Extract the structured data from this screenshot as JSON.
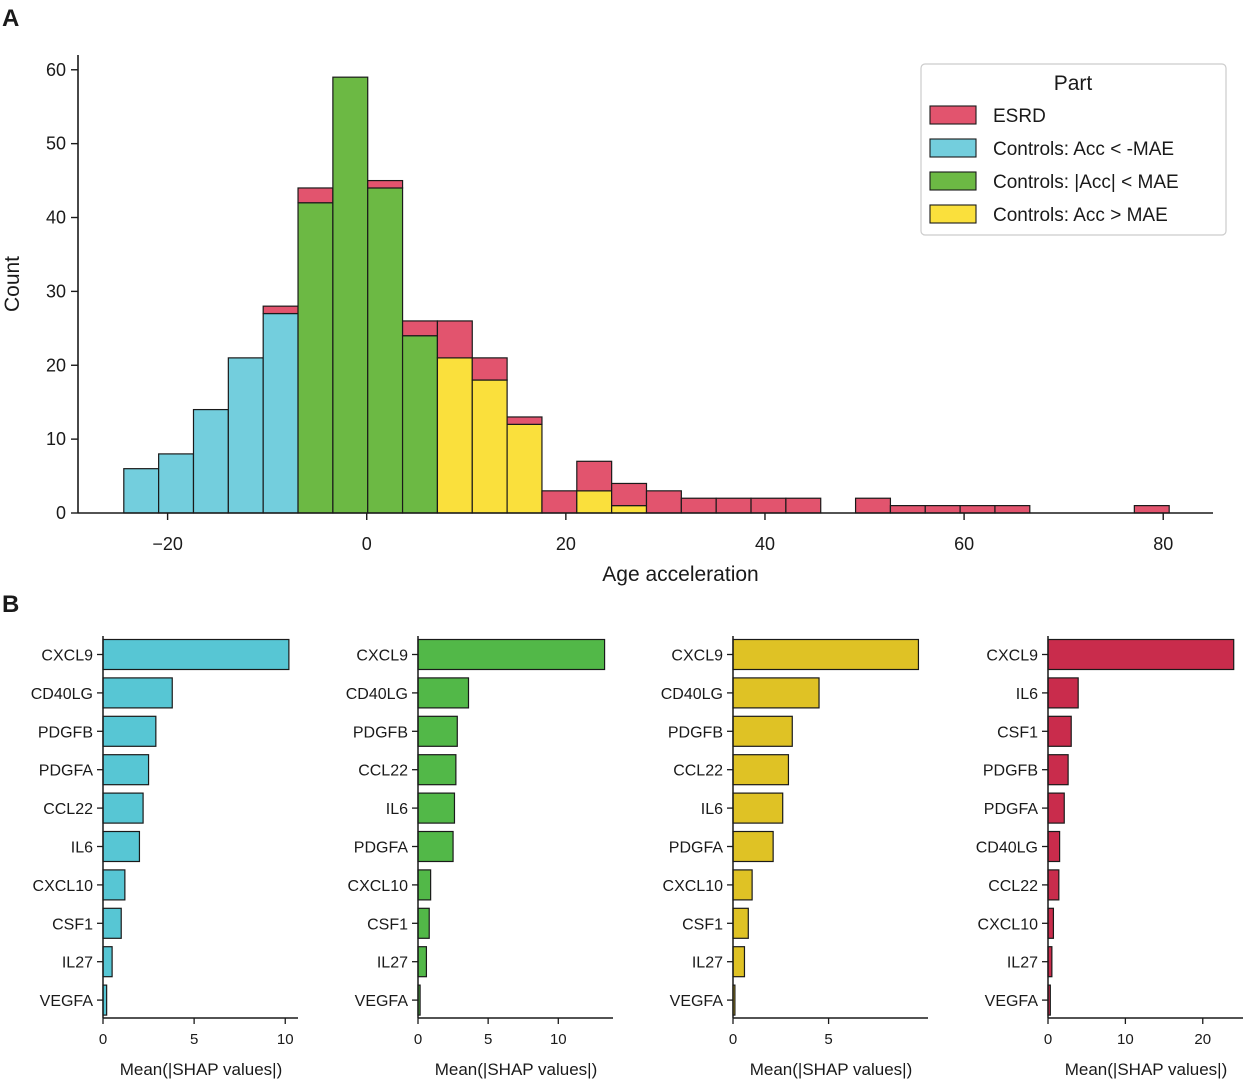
{
  "panel_labels": {
    "a": "A",
    "b": "B"
  },
  "chart_data": [
    {
      "type": "bar",
      "subtype": "stacked-histogram",
      "xlabel": "Age acceleration",
      "ylabel": "Count",
      "xlim": [
        -29,
        85
      ],
      "ylim": [
        0,
        62
      ],
      "xticks": [
        -20,
        0,
        20,
        40,
        60,
        80
      ],
      "xtick_labels": [
        "−20",
        "0",
        "20",
        "40",
        "60",
        "80"
      ],
      "yticks": [
        0,
        10,
        20,
        30,
        40,
        50,
        60
      ],
      "bins": [
        [
          -24.4,
          -20.9
        ],
        [
          -20.9,
          -17.4
        ],
        [
          -17.4,
          -13.9
        ],
        [
          -13.9,
          -10.4
        ],
        [
          -10.4,
          -6.9
        ],
        [
          -6.9,
          -3.4
        ],
        [
          -3.4,
          0.1
        ],
        [
          0.1,
          3.6
        ],
        [
          3.6,
          7.1
        ],
        [
          7.1,
          10.6
        ],
        [
          10.6,
          14.1
        ],
        [
          14.1,
          17.6
        ],
        [
          17.6,
          21.1
        ],
        [
          21.1,
          24.6
        ],
        [
          24.6,
          28.1
        ],
        [
          28.1,
          31.6
        ],
        [
          31.6,
          35.1
        ],
        [
          35.1,
          38.6
        ],
        [
          38.6,
          42.1
        ],
        [
          42.1,
          45.6
        ],
        [
          45.6,
          49.1
        ],
        [
          49.1,
          52.6
        ],
        [
          52.6,
          56.1
        ],
        [
          56.1,
          59.6
        ],
        [
          59.6,
          63.1
        ],
        [
          63.1,
          66.6
        ],
        [
          66.6,
          70.1
        ],
        [
          70.1,
          73.6
        ],
        [
          73.6,
          77.1
        ],
        [
          77.1,
          80.6
        ]
      ],
      "legend": {
        "title": "Part",
        "position": "top-right",
        "entries": [
          {
            "label": "ESRD",
            "series": 3
          },
          {
            "label": "Controls:  Acc < -MAE",
            "series": 0
          },
          {
            "label": "Controls: |Acc| < MAE",
            "series": 1
          },
          {
            "label": "Controls:  Acc > MAE",
            "series": 2
          }
        ]
      },
      "series": [
        {
          "name": "Controls:  Acc < -MAE",
          "color": "#73CEDD",
          "values": [
            6,
            8,
            14,
            21,
            27,
            0,
            0,
            0,
            0,
            0,
            0,
            0,
            0,
            0,
            0,
            0,
            0,
            0,
            0,
            0,
            0,
            0,
            0,
            0,
            0,
            0,
            0,
            0,
            0,
            0
          ]
        },
        {
          "name": "Controls: |Acc| < MAE",
          "color": "#6CB944",
          "values": [
            0,
            0,
            0,
            0,
            0,
            42,
            59,
            44,
            24,
            0,
            0,
            0,
            0,
            0,
            0,
            0,
            0,
            0,
            0,
            0,
            0,
            0,
            0,
            0,
            0,
            0,
            0,
            0,
            0,
            0
          ]
        },
        {
          "name": "Controls:  Acc > MAE",
          "color": "#FAE03C",
          "values": [
            0,
            0,
            0,
            0,
            0,
            0,
            0,
            0,
            0,
            21,
            18,
            12,
            0,
            3,
            1,
            0,
            0,
            0,
            0,
            0,
            0,
            0,
            0,
            0,
            0,
            0,
            0,
            0,
            0,
            0
          ]
        },
        {
          "name": "ESRD",
          "color": "#E2546E",
          "values": [
            0,
            0,
            0,
            0,
            1,
            2,
            0,
            1,
            2,
            5,
            3,
            1,
            3,
            4,
            3,
            3,
            2,
            2,
            2,
            2,
            0,
            2,
            1,
            1,
            1,
            1,
            0,
            0,
            0,
            1
          ]
        }
      ]
    },
    {
      "type": "bar",
      "orientation": "horizontal",
      "title": "",
      "xlabel": "Mean(|SHAP values|)",
      "color": "#57C6D4",
      "xlim": [
        0,
        10.7
      ],
      "xticks": [
        0,
        5,
        10
      ],
      "categories": [
        "CXCL9",
        "CD40LG",
        "PDGFB",
        "PDGFA",
        "CCL22",
        "IL6",
        "CXCL10",
        "CSF1",
        "IL27",
        "VEGFA"
      ],
      "values": [
        10.2,
        3.8,
        2.9,
        2.5,
        2.2,
        2.0,
        1.2,
        1.0,
        0.5,
        0.2
      ]
    },
    {
      "type": "bar",
      "orientation": "horizontal",
      "title": "",
      "xlabel": "Mean(|SHAP values|)",
      "color": "#52B848",
      "xlim": [
        0,
        13.9
      ],
      "xticks": [
        0,
        5,
        10
      ],
      "categories": [
        "CXCL9",
        "CD40LG",
        "PDGFB",
        "CCL22",
        "IL6",
        "PDGFA",
        "CXCL10",
        "CSF1",
        "IL27",
        "VEGFA"
      ],
      "values": [
        13.3,
        3.6,
        2.8,
        2.7,
        2.6,
        2.5,
        0.9,
        0.8,
        0.6,
        0.15
      ]
    },
    {
      "type": "bar",
      "orientation": "horizontal",
      "title": "",
      "xlabel": "Mean(|SHAP values|)",
      "color": "#DFC225",
      "xlim": [
        0,
        10.2
      ],
      "xticks": [
        0,
        5
      ],
      "categories": [
        "CXCL9",
        "CD40LG",
        "PDGFB",
        "CCL22",
        "IL6",
        "PDGFA",
        "CXCL10",
        "CSF1",
        "IL27",
        "VEGFA"
      ],
      "values": [
        9.7,
        4.5,
        3.1,
        2.9,
        2.6,
        2.1,
        1.0,
        0.8,
        0.6,
        0.1
      ]
    },
    {
      "type": "bar",
      "orientation": "horizontal",
      "title": "",
      "xlabel": "Mean(|SHAP values|)",
      "color": "#C92C4C",
      "xlim": [
        0,
        25.2
      ],
      "xticks": [
        0,
        10,
        20
      ],
      "categories": [
        "CXCL9",
        "IL6",
        "CSF1",
        "PDGFB",
        "PDGFA",
        "CD40LG",
        "CCL22",
        "CXCL10",
        "IL27",
        "VEGFA"
      ],
      "values": [
        24.0,
        3.9,
        3.0,
        2.6,
        2.1,
        1.5,
        1.4,
        0.7,
        0.5,
        0.3
      ]
    }
  ]
}
